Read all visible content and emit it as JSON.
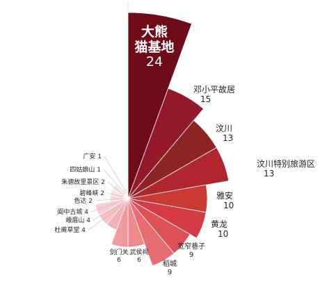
{
  "chart_data": {
    "type": "pie",
    "variant": "nightingale-rose",
    "title": "",
    "slices": [
      {
        "name": "大熊猫基地",
        "value": 24,
        "color": "#6e0d18"
      },
      {
        "name": "邓小平故居",
        "value": 15,
        "color": "#96182b"
      },
      {
        "name": "汶川",
        "value": 13,
        "color": "#8c2524"
      },
      {
        "name": "汶川特别旅游区",
        "value": 13,
        "color": "#b02630"
      },
      {
        "name": "雅安",
        "value": 10,
        "color": "#c93a32"
      },
      {
        "name": "黄龙",
        "value": 10,
        "color": "#d43b47"
      },
      {
        "name": "宽窄巷子",
        "value": 9,
        "color": "#de5257"
      },
      {
        "name": "稻城",
        "value": 9,
        "color": "#e86d72"
      },
      {
        "name": "武侯祠",
        "value": 6,
        "color": "#ee8a8d"
      },
      {
        "name": "剑门关",
        "value": 6,
        "color": "#f19ba0"
      },
      {
        "name": "杜甫草堂",
        "value": 4,
        "color": "#f4b1b5"
      },
      {
        "name": "峨眉山",
        "value": 4,
        "color": "#f6bfc2"
      },
      {
        "name": "阆中古城",
        "value": 4,
        "color": "#f8cccf"
      },
      {
        "name": "色达",
        "value": 2,
        "color": "#f9d6d8"
      },
      {
        "name": "碧峰峡",
        "value": 2,
        "color": "#fadfe1"
      },
      {
        "name": "朱德故里景区",
        "value": 2,
        "color": "#fbe6e7"
      },
      {
        "name": "四姑娘山",
        "value": 1,
        "color": "#fceced"
      },
      {
        "name": "广安",
        "value": 1,
        "color": "#fdf1f2"
      }
    ]
  }
}
